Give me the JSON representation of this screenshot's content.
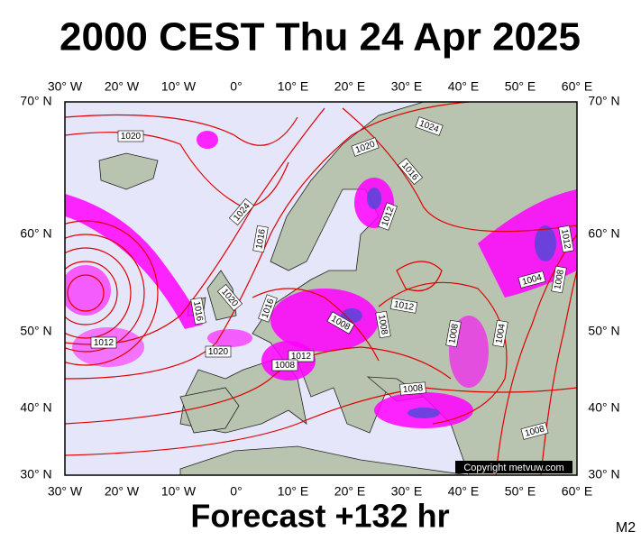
{
  "header": {
    "title": "2000 CEST Thu 24 Apr 2025"
  },
  "footer": {
    "forecast": "Forecast +132 hr",
    "model": "M2"
  },
  "copyright": "Copyright metvuw.com",
  "axes": {
    "longitudes": [
      "30° W",
      "20° W",
      "10° W",
      "0°",
      "10° E",
      "20° E",
      "30° E",
      "40° E",
      "50° E",
      "60° E"
    ],
    "latitudes": [
      "70° N",
      "60° N",
      "50° N",
      "40° N",
      "30° N"
    ]
  },
  "isobar_labels": [
    "1020",
    "1024",
    "1020",
    "1016",
    "1024",
    "1016",
    "1012",
    "1012",
    "1020",
    "1016",
    "1016",
    "1008",
    "1012",
    "1008",
    "1004",
    "1008",
    "1004",
    "1008",
    "1012",
    "1020",
    "1012",
    "1008",
    "1008",
    "1008"
  ]
}
